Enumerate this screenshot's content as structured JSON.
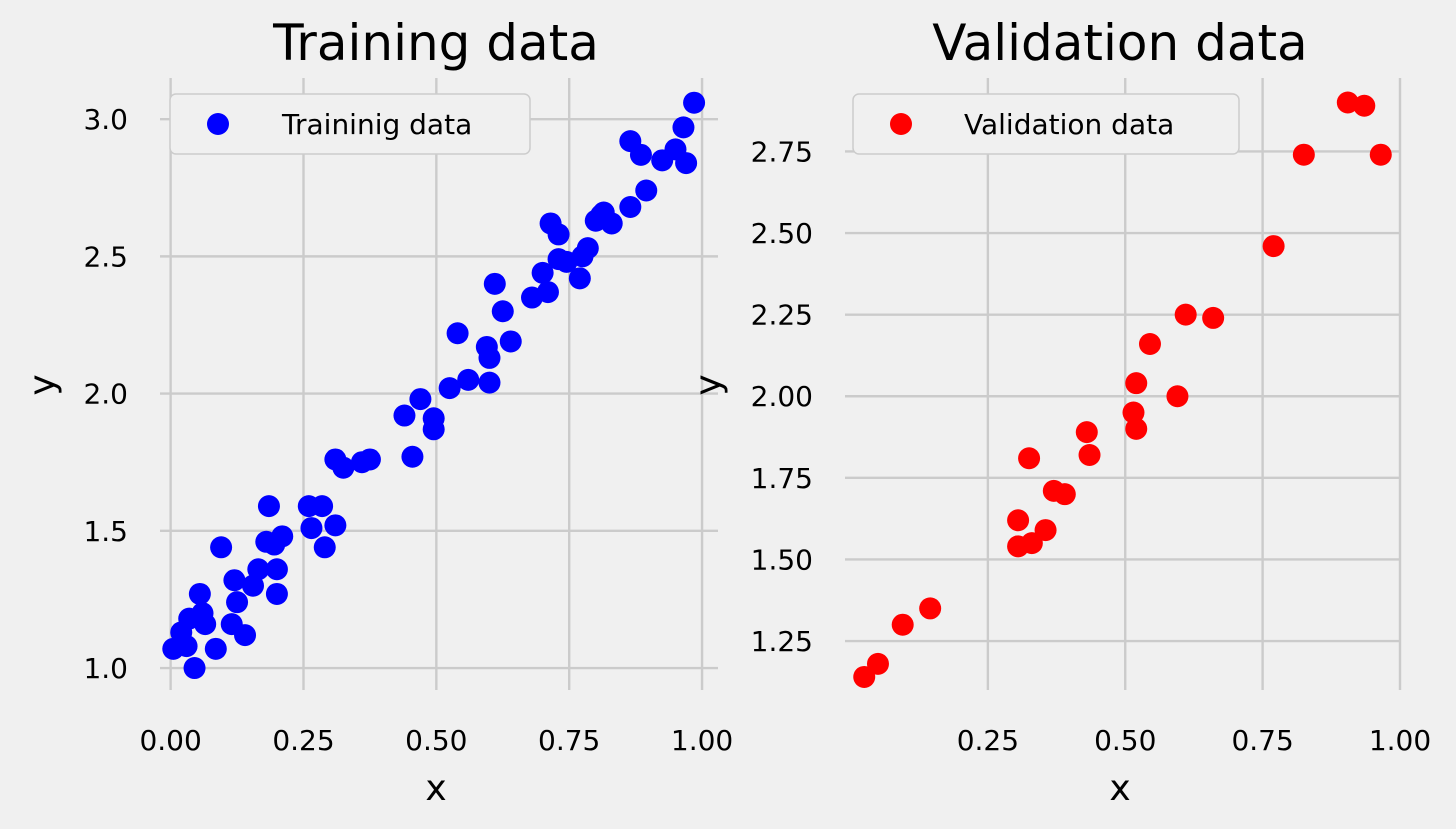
{
  "chart_data": [
    {
      "type": "scatter",
      "title": "Training data",
      "xlabel": "x",
      "ylabel": "y",
      "xlim": [
        -0.02,
        1.03
      ],
      "ylim": [
        0.92,
        3.15
      ],
      "xticks": [
        "0.00",
        "0.25",
        "0.50",
        "0.75",
        "1.00"
      ],
      "yticks": [
        "1.0",
        "1.5",
        "2.0",
        "2.5",
        "3.0"
      ],
      "grid": true,
      "legend_position": "upper-left",
      "series": [
        {
          "name": "Traininig data",
          "color": "#0000ff",
          "points": [
            [
              0.005,
              1.07
            ],
            [
              0.02,
              1.13
            ],
            [
              0.03,
              1.08
            ],
            [
              0.035,
              1.18
            ],
            [
              0.045,
              1.0
            ],
            [
              0.055,
              1.27
            ],
            [
              0.06,
              1.2
            ],
            [
              0.065,
              1.16
            ],
            [
              0.085,
              1.07
            ],
            [
              0.095,
              1.44
            ],
            [
              0.115,
              1.16
            ],
            [
              0.12,
              1.32
            ],
            [
              0.125,
              1.24
            ],
            [
              0.14,
              1.12
            ],
            [
              0.155,
              1.3
            ],
            [
              0.165,
              1.36
            ],
            [
              0.18,
              1.46
            ],
            [
              0.185,
              1.59
            ],
            [
              0.195,
              1.45
            ],
            [
              0.2,
              1.27
            ],
            [
              0.2,
              1.36
            ],
            [
              0.21,
              1.48
            ],
            [
              0.26,
              1.59
            ],
            [
              0.265,
              1.51
            ],
            [
              0.285,
              1.59
            ],
            [
              0.29,
              1.44
            ],
            [
              0.31,
              1.52
            ],
            [
              0.31,
              1.76
            ],
            [
              0.325,
              1.73
            ],
            [
              0.36,
              1.75
            ],
            [
              0.375,
              1.76
            ],
            [
              0.44,
              1.92
            ],
            [
              0.455,
              1.77
            ],
            [
              0.47,
              1.98
            ],
            [
              0.495,
              1.91
            ],
            [
              0.495,
              1.87
            ],
            [
              0.525,
              2.02
            ],
            [
              0.54,
              2.22
            ],
            [
              0.56,
              2.05
            ],
            [
              0.595,
              2.17
            ],
            [
              0.6,
              2.13
            ],
            [
              0.6,
              2.04
            ],
            [
              0.61,
              2.4
            ],
            [
              0.625,
              2.3
            ],
            [
              0.64,
              2.19
            ],
            [
              0.68,
              2.35
            ],
            [
              0.7,
              2.44
            ],
            [
              0.71,
              2.37
            ],
            [
              0.715,
              2.62
            ],
            [
              0.73,
              2.58
            ],
            [
              0.73,
              2.49
            ],
            [
              0.745,
              2.48
            ],
            [
              0.77,
              2.42
            ],
            [
              0.775,
              2.5
            ],
            [
              0.785,
              2.53
            ],
            [
              0.8,
              2.63
            ],
            [
              0.81,
              2.65
            ],
            [
              0.815,
              2.66
            ],
            [
              0.83,
              2.62
            ],
            [
              0.865,
              2.68
            ],
            [
              0.865,
              2.92
            ],
            [
              0.885,
              2.87
            ],
            [
              0.895,
              2.74
            ],
            [
              0.925,
              2.85
            ],
            [
              0.95,
              2.89
            ],
            [
              0.965,
              2.97
            ],
            [
              0.97,
              2.84
            ],
            [
              0.985,
              3.06
            ]
          ]
        }
      ]
    },
    {
      "type": "scatter",
      "title": "Validation data",
      "xlabel": "x",
      "ylabel": "y",
      "xlim": [
        -0.01,
        1.0
      ],
      "ylim": [
        1.1,
        2.975
      ],
      "xticks": [
        "0.25",
        "0.50",
        "0.75",
        "1.00"
      ],
      "yticks": [
        "1.25",
        "1.50",
        "1.75",
        "2.00",
        "2.25",
        "2.50",
        "2.75"
      ],
      "grid": true,
      "legend_position": "upper-left",
      "series": [
        {
          "name": "Validation data",
          "color": "#ff0000",
          "points": [
            [
              0.025,
              1.14
            ],
            [
              0.05,
              1.18
            ],
            [
              0.095,
              1.3
            ],
            [
              0.145,
              1.35
            ],
            [
              0.305,
              1.62
            ],
            [
              0.305,
              1.54
            ],
            [
              0.325,
              1.81
            ],
            [
              0.33,
              1.55
            ],
            [
              0.355,
              1.59
            ],
            [
              0.37,
              1.71
            ],
            [
              0.39,
              1.7
            ],
            [
              0.43,
              1.89
            ],
            [
              0.435,
              1.82
            ],
            [
              0.515,
              1.95
            ],
            [
              0.52,
              2.04
            ],
            [
              0.52,
              1.9
            ],
            [
              0.545,
              2.16
            ],
            [
              0.595,
              2.0
            ],
            [
              0.61,
              2.25
            ],
            [
              0.66,
              2.24
            ],
            [
              0.77,
              2.46
            ],
            [
              0.825,
              2.74
            ],
            [
              0.905,
              2.9
            ],
            [
              0.935,
              2.89
            ],
            [
              0.965,
              2.74
            ]
          ]
        }
      ]
    }
  ]
}
